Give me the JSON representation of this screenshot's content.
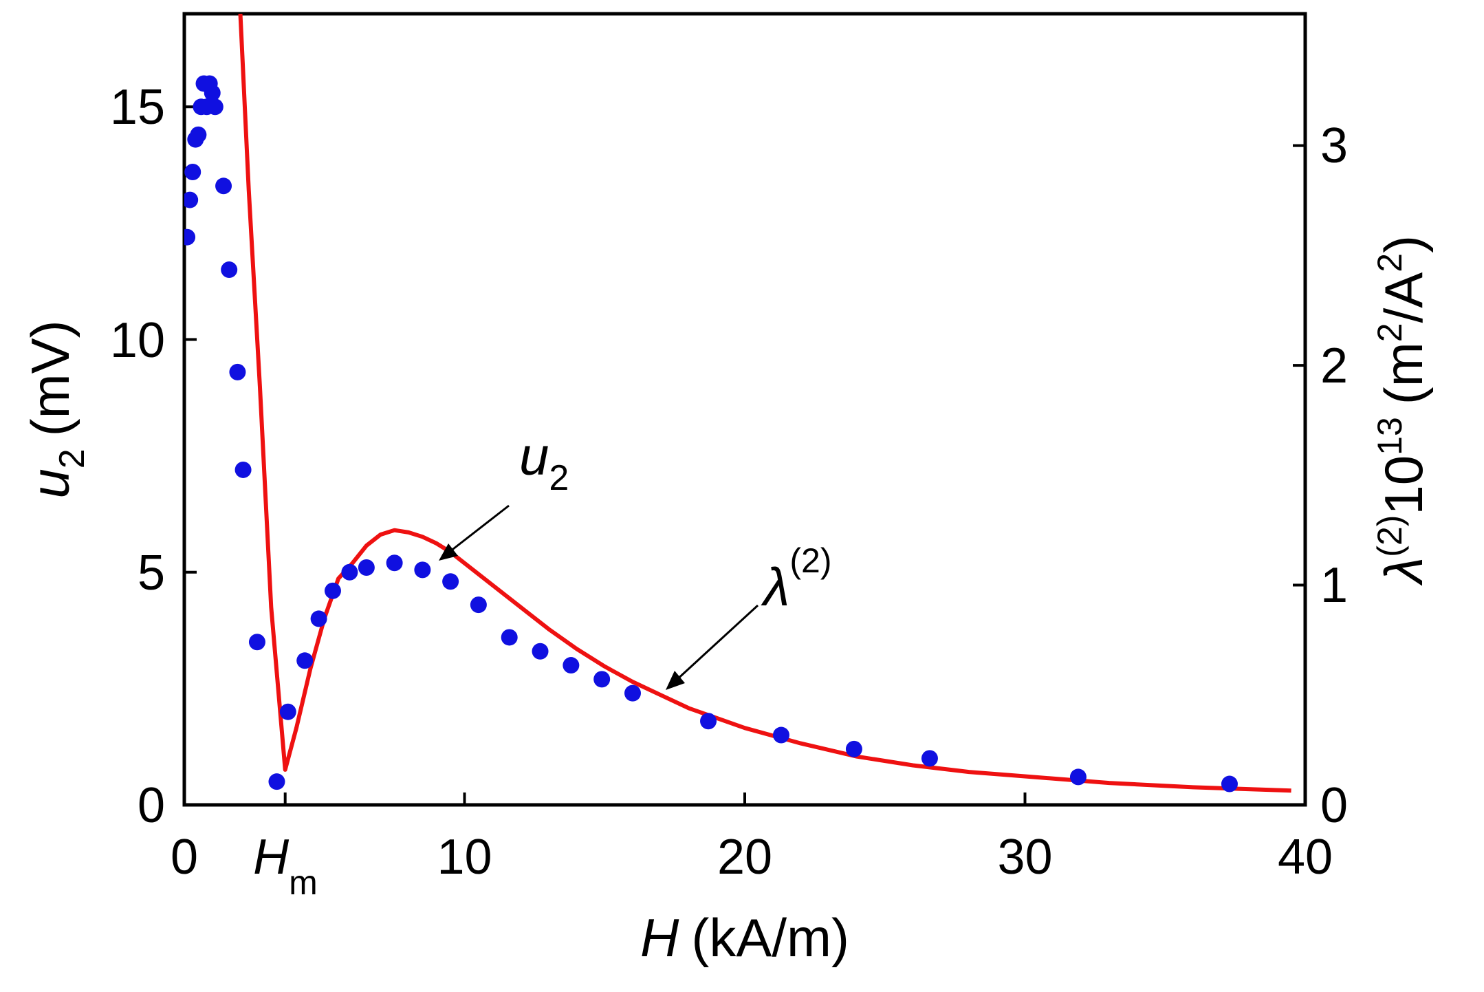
{
  "chart_data": {
    "type": "scatter+line",
    "xlabel": {
      "symbol": "H",
      "unit": "(kA/m)"
    },
    "ylabel_left": {
      "symbol": "u",
      "subscript": "2",
      "unit": "(mV)"
    },
    "ylabel_right": {
      "symbol": "λ",
      "superscript": "(2)",
      "factor": "10",
      "factor_exp": "13",
      "unit_open": "(m",
      "unit_exp1": "2",
      "unit_mid": "/A",
      "unit_exp2": "2",
      "unit_close": ")"
    },
    "xlim": [
      0,
      40
    ],
    "ylim_left": [
      0,
      17
    ],
    "ylim_right": [
      0,
      3.6
    ],
    "x_ticks": [
      "0",
      "10",
      "20",
      "30",
      "40"
    ],
    "x_tick_values": [
      0,
      10,
      20,
      30,
      40
    ],
    "x_special_tick": {
      "symbol": "H",
      "subscript": "m",
      "value": 3.6
    },
    "y_left_ticks": [
      "0",
      "5",
      "10",
      "15"
    ],
    "y_left_tick_values": [
      0,
      5,
      10,
      15
    ],
    "y_right_ticks": [
      "0",
      "1",
      "2",
      "3"
    ],
    "y_right_tick_values": [
      0,
      1,
      2,
      3
    ],
    "annotations": {
      "u2": {
        "symbol": "u",
        "subscript": "2"
      },
      "lambda": {
        "symbol": "λ",
        "superscript": "(2)"
      }
    },
    "series": [
      {
        "name": "u2",
        "type": "scatter",
        "axis": "left",
        "color": "#1010e0",
        "points": [
          [
            0.1,
            12.2
          ],
          [
            0.2,
            13.0
          ],
          [
            0.3,
            13.6
          ],
          [
            0.4,
            14.3
          ],
          [
            0.5,
            14.4
          ],
          [
            0.6,
            15.0
          ],
          [
            0.7,
            15.5
          ],
          [
            0.8,
            15.0
          ],
          [
            0.9,
            15.5
          ],
          [
            1.0,
            15.3
          ],
          [
            1.1,
            15.0
          ],
          [
            1.4,
            13.3
          ],
          [
            1.6,
            11.5
          ],
          [
            1.9,
            9.3
          ],
          [
            2.1,
            7.2
          ],
          [
            2.6,
            3.5
          ],
          [
            3.3,
            0.5
          ],
          [
            3.7,
            2.0
          ],
          [
            4.3,
            3.1
          ],
          [
            4.8,
            4.0
          ],
          [
            5.3,
            4.6
          ],
          [
            5.9,
            5.0
          ],
          [
            6.5,
            5.1
          ],
          [
            7.5,
            5.2
          ],
          [
            8.5,
            5.05
          ],
          [
            9.5,
            4.8
          ],
          [
            10.5,
            4.3
          ],
          [
            11.6,
            3.6
          ],
          [
            12.7,
            3.3
          ],
          [
            13.8,
            3.0
          ],
          [
            14.9,
            2.7
          ],
          [
            16.0,
            2.4
          ],
          [
            18.7,
            1.8
          ],
          [
            21.3,
            1.5
          ],
          [
            23.9,
            1.2
          ],
          [
            26.6,
            1.0
          ],
          [
            31.9,
            0.6
          ],
          [
            37.3,
            0.45
          ]
        ]
      },
      {
        "name": "λ(2)",
        "type": "line",
        "axis": "right",
        "color": "#ee1111",
        "points": [
          [
            2.0,
            3.6
          ],
          [
            2.3,
            2.8
          ],
          [
            2.7,
            1.9
          ],
          [
            3.1,
            0.9
          ],
          [
            3.6,
            0.16
          ],
          [
            4.0,
            0.35
          ],
          [
            4.5,
            0.62
          ],
          [
            5.0,
            0.85
          ],
          [
            5.5,
            1.03
          ],
          [
            6.0,
            1.1
          ],
          [
            6.5,
            1.18
          ],
          [
            7.0,
            1.23
          ],
          [
            7.5,
            1.25
          ],
          [
            8.0,
            1.24
          ],
          [
            8.5,
            1.22
          ],
          [
            9.0,
            1.19
          ],
          [
            9.5,
            1.15
          ],
          [
            10.0,
            1.1
          ],
          [
            11.0,
            1.0
          ],
          [
            12.0,
            0.9
          ],
          [
            13.0,
            0.8
          ],
          [
            14.0,
            0.71
          ],
          [
            15.0,
            0.63
          ],
          [
            16.0,
            0.56
          ],
          [
            17.0,
            0.5
          ],
          [
            18.0,
            0.44
          ],
          [
            20.0,
            0.35
          ],
          [
            22.0,
            0.28
          ],
          [
            24.0,
            0.22
          ],
          [
            26.0,
            0.18
          ],
          [
            28.0,
            0.15
          ],
          [
            30.0,
            0.13
          ],
          [
            33.0,
            0.1
          ],
          [
            36.0,
            0.08
          ],
          [
            39.5,
            0.065
          ]
        ]
      }
    ]
  }
}
